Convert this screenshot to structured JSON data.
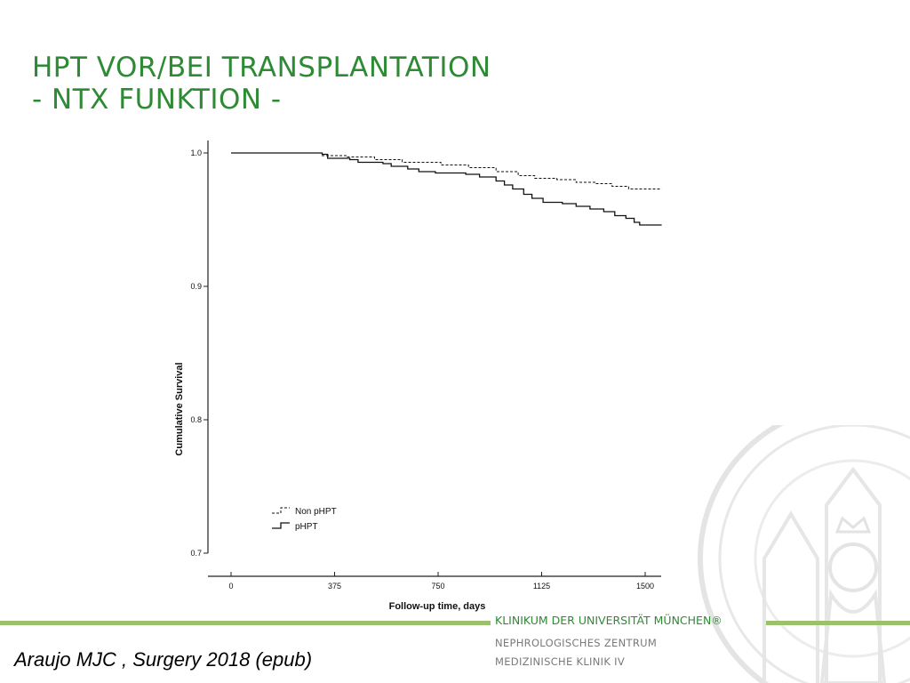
{
  "slide": {
    "title_line1": "HPT VOR/BEI TRANSPLANTATION",
    "title_line2": "- NTX FUNKTION -",
    "citation": "Araujo MJC , Surgery 2018 (epub)"
  },
  "footer": {
    "institution": "KLINIKUM DER UNIVERSITÄT MÜNCHEN®",
    "line2": "NEPHROLOGISCHES ZENTRUM",
    "line3": "MEDIZINISCHE KLINIK IV",
    "accent_color": "#2e8a34",
    "bar_color": "#9bc16a"
  },
  "chart_data": {
    "type": "line",
    "xlabel": "Follow-up time, days",
    "ylabel": "Cumulative Survival",
    "xlim": [
      0,
      1560
    ],
    "ylim": [
      0.7,
      1.0
    ],
    "x_ticks": [
      0,
      375,
      750,
      1125,
      1500
    ],
    "y_ticks": [
      0.7,
      0.8,
      0.9,
      1.0
    ],
    "x_tick_labels": [
      "0",
      "375",
      "750",
      "1125",
      "1500"
    ],
    "y_tick_labels": [
      "0.7",
      "0.8",
      "0.9",
      "1.0"
    ],
    "legend_position": "bottom-left",
    "series": [
      {
        "name": "Non pHPT",
        "style": "dashed",
        "points": [
          [
            0,
            1.0
          ],
          [
            180,
            1.0
          ],
          [
            330,
            0.998
          ],
          [
            420,
            0.997
          ],
          [
            520,
            0.995
          ],
          [
            620,
            0.993
          ],
          [
            760,
            0.991
          ],
          [
            860,
            0.989
          ],
          [
            960,
            0.986
          ],
          [
            1040,
            0.983
          ],
          [
            1100,
            0.981
          ],
          [
            1180,
            0.98
          ],
          [
            1250,
            0.978
          ],
          [
            1320,
            0.977
          ],
          [
            1380,
            0.975
          ],
          [
            1440,
            0.973
          ],
          [
            1500,
            0.973
          ],
          [
            1560,
            0.973
          ]
        ]
      },
      {
        "name": "pHPT",
        "style": "solid",
        "points": [
          [
            0,
            1.0
          ],
          [
            330,
            0.999
          ],
          [
            350,
            0.996
          ],
          [
            430,
            0.995
          ],
          [
            460,
            0.993
          ],
          [
            550,
            0.992
          ],
          [
            580,
            0.99
          ],
          [
            640,
            0.988
          ],
          [
            680,
            0.986
          ],
          [
            740,
            0.985
          ],
          [
            850,
            0.984
          ],
          [
            900,
            0.982
          ],
          [
            960,
            0.979
          ],
          [
            990,
            0.976
          ],
          [
            1020,
            0.973
          ],
          [
            1060,
            0.969
          ],
          [
            1090,
            0.966
          ],
          [
            1130,
            0.963
          ],
          [
            1200,
            0.962
          ],
          [
            1250,
            0.96
          ],
          [
            1300,
            0.958
          ],
          [
            1350,
            0.956
          ],
          [
            1390,
            0.953
          ],
          [
            1430,
            0.951
          ],
          [
            1460,
            0.948
          ],
          [
            1480,
            0.946
          ],
          [
            1560,
            0.946
          ]
        ]
      }
    ]
  }
}
